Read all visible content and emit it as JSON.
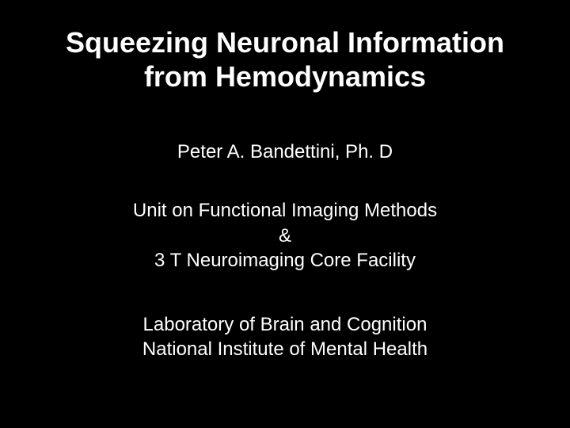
{
  "slide": {
    "title_line1": "Squeezing Neuronal Information",
    "title_line2": "from Hemodynamics",
    "author": "Peter A. Bandettini, Ph. D",
    "affiliation_line1": "Unit on Functional Imaging Methods",
    "affiliation_line2": "&",
    "affiliation_line3": "3 T Neuroimaging Core Facility",
    "institution_line1": "Laboratory of Brain and Cognition",
    "institution_line2": "National Institute of Mental Health",
    "background_color": "#000000",
    "text_color": "#ffffff",
    "title_fontsize": 36,
    "body_fontsize": 24,
    "font_family": "Arial"
  }
}
